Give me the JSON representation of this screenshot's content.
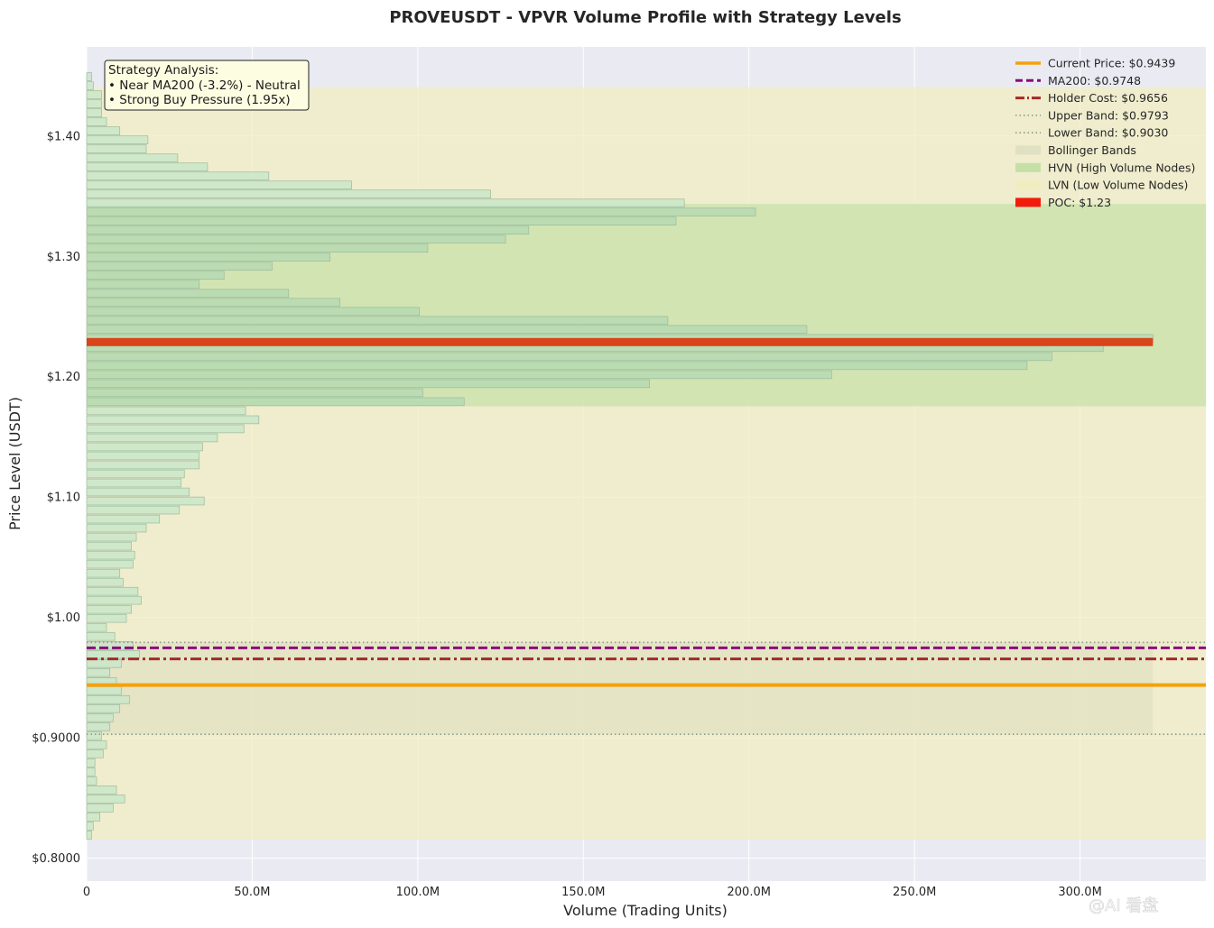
{
  "watermark": "@AI 看盘",
  "colors": {
    "plot_bg": "#eaeaf2",
    "grid": "#ffffff",
    "bar_fill": "#c8e6c9",
    "bar_fill_hvn": "#b5d9b3",
    "bar_edge": "#9cb99c",
    "lvn_band": "#f0eec0",
    "hvn_band": "#c5dfa6",
    "bollinger": "#dcdcc0",
    "current_price": "#f5a10d",
    "ma200": "#8b0a7a",
    "holder_cost": "#a52a2a",
    "bands": "#8c9c8c",
    "poc": "#d9441a",
    "legend_poc": "#f21c0c"
  },
  "chart_data": {
    "type": "bar",
    "orientation": "horizontal",
    "title": "PROVEUSDT - VPVR Volume Profile with Strategy Levels",
    "xlabel": "Volume (Trading Units)",
    "ylabel": "Price Level (USDT)",
    "xlim": [
      0,
      338
    ],
    "ylim": [
      0.781,
      1.474
    ],
    "x_unit": "M",
    "xticks": [
      0,
      50,
      100,
      150,
      200,
      250,
      300
    ],
    "xtick_labels": [
      "0",
      "50.0M",
      "100.0M",
      "150.0M",
      "200.0M",
      "250.0M",
      "300.0M"
    ],
    "yticks": [
      0.8,
      0.9,
      1.0,
      1.1,
      1.2,
      1.3,
      1.4
    ],
    "ytick_labels": [
      "$0.8000",
      "$0.9000",
      "$1.00",
      "$1.10",
      "$1.20",
      "$1.30",
      "$1.40"
    ],
    "grid": true,
    "bin_start": 0.8155,
    "bin_size": 0.0075,
    "volumes": [
      1.5,
      2,
      4,
      8,
      11.5,
      9,
      3,
      2.5,
      2.5,
      5,
      6,
      4.5,
      7,
      8,
      10,
      13,
      10.5,
      9,
      7,
      10.5,
      16,
      14,
      8.5,
      6,
      12,
      13.5,
      16.5,
      15.5,
      11,
      10,
      14,
      14.5,
      13.5,
      15,
      18,
      22,
      28,
      35.5,
      31,
      28.5,
      29.5,
      34,
      34,
      35,
      39.5,
      47.5,
      52,
      48,
      114,
      101.5,
      170,
      225,
      284,
      291.5,
      307,
      322,
      217.5,
      175.5,
      100.5,
      76.5,
      61,
      34,
      41.5,
      56,
      73.5,
      103,
      126.5,
      133.5,
      178,
      202,
      180.5,
      122,
      80,
      55,
      36.5,
      27.5,
      18,
      18.5,
      10,
      6,
      4.5,
      4.5,
      4.5,
      2,
      1.5
    ],
    "levels": {
      "current_price": 0.9439,
      "ma200": 0.9748,
      "holder_cost": 0.9656,
      "upper_band": 0.9793,
      "lower_band": 0.903,
      "poc": 1.2288
    },
    "hvn_range": [
      1.1755,
      1.3435
    ],
    "lvn_range": [
      0.8155,
      1.4405
    ],
    "bollinger_range": [
      0.903,
      0.9793
    ],
    "bollinger_extent": 322,
    "legend": {
      "placement": "top-right",
      "entries": [
        {
          "key": "current_price",
          "label": "Current Price: $0.9439"
        },
        {
          "key": "ma200",
          "label": "MA200: $0.9748"
        },
        {
          "key": "holder_cost",
          "label": "Holder Cost: $0.9656"
        },
        {
          "key": "upper_band",
          "label": "Upper Band: $0.9793"
        },
        {
          "key": "lower_band",
          "label": "Lower Band: $0.9030"
        },
        {
          "key": "bollinger",
          "label": "Bollinger Bands"
        },
        {
          "key": "hvn",
          "label": "HVN (High Volume Nodes)"
        },
        {
          "key": "lvn",
          "label": "LVN (Low Volume Nodes)"
        },
        {
          "key": "poc",
          "label": "POC: $1.23"
        }
      ]
    },
    "annotation": {
      "placement": "top-left",
      "lines": [
        "Strategy Analysis:",
        "• Near MA200 (-3.2%) - Neutral",
        "• Strong Buy Pressure (1.95x)"
      ]
    }
  }
}
